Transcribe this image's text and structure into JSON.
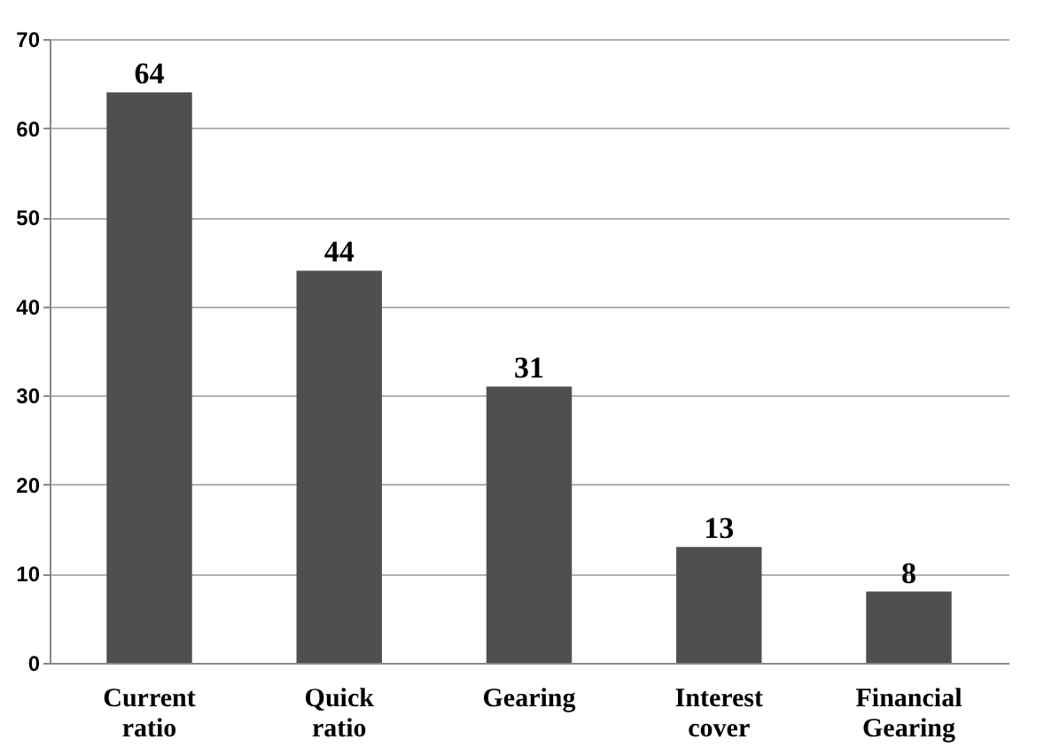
{
  "chart_data": {
    "type": "bar",
    "categories": [
      "Current ratio",
      "Quick ratio",
      "Gearing",
      "Interest cover",
      "Financial Gearing"
    ],
    "values": [
      64,
      44,
      31,
      13,
      8
    ],
    "color": "#4f4f4f",
    "ylim": [
      0,
      70
    ],
    "yticks": [
      0,
      10,
      20,
      30,
      40,
      50,
      60,
      70
    ],
    "grid": "y",
    "data_labels": true
  }
}
